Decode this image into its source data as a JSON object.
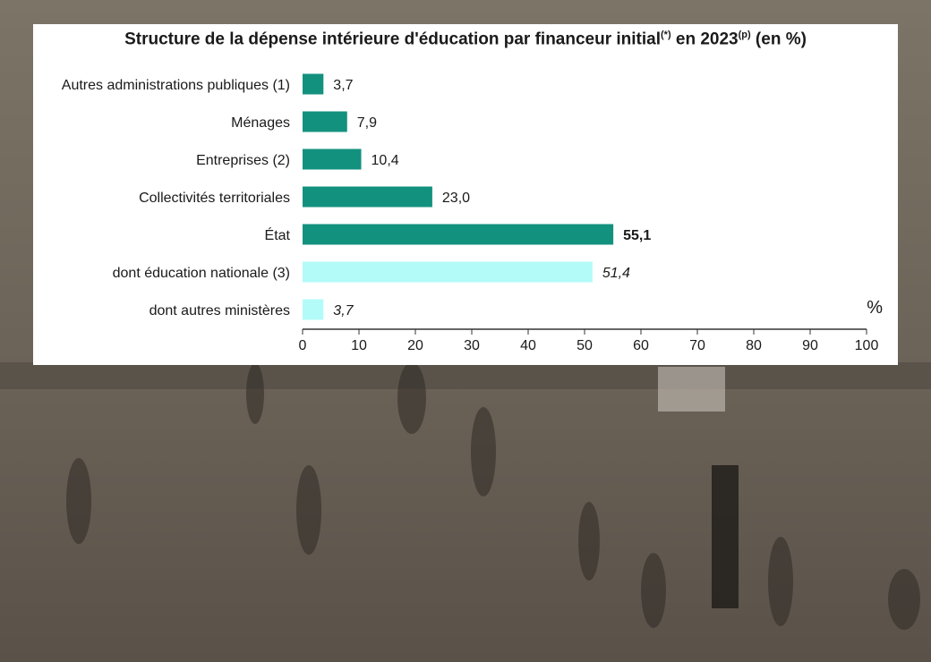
{
  "title": {
    "part1": "Structure de la dépense intérieure d'éducation par financeur initial",
    "sup1": "(*)",
    "part2": " en 2023",
    "sup2": "(p)",
    "part3": " (en %)"
  },
  "colors": {
    "primary_bar": "#13917f",
    "secondary_bar": "#b3fbf8",
    "axis": "#333333"
  },
  "chart_data": {
    "type": "bar",
    "orientation": "horizontal",
    "title": "Structure de la dépense intérieure d'éducation par financeur initial(*) en 2023(p) (en %)",
    "categories": [
      "Autres administrations publiques (1)",
      "Ménages",
      "Entreprises (2)",
      "Collectivités territoriales",
      "État",
      "dont éducation nationale (3)",
      "dont autres ministères"
    ],
    "values": [
      3.7,
      7.9,
      10.4,
      23.0,
      55.1,
      51.4,
      3.7
    ],
    "value_labels": [
      "3,7",
      "7,9",
      "10,4",
      "23,0",
      "55,1",
      "51,4",
      "3,7"
    ],
    "label_styles": [
      "normal",
      "normal",
      "normal",
      "normal",
      "bold",
      "italic",
      "italic"
    ],
    "bar_colors": [
      "primary",
      "primary",
      "primary",
      "primary",
      "primary",
      "secondary",
      "secondary"
    ],
    "xlim": [
      0,
      100
    ],
    "xticks": [
      "0",
      "10",
      "20",
      "30",
      "40",
      "50",
      "60",
      "70",
      "80",
      "90",
      "100"
    ],
    "unit": "%",
    "grid": false
  }
}
